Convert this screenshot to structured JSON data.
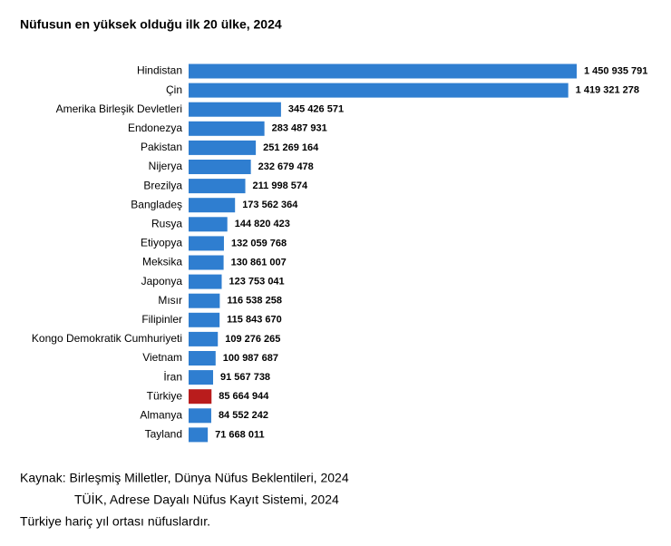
{
  "chart_data": {
    "type": "hbar",
    "title": "Nüfusun en yüksek olduğu ilk 20 ülke, 2024",
    "categories": [
      "Hindistan",
      "Çin",
      "Amerika Birleşik Devletleri",
      "Endonezya",
      "Pakistan",
      "Nijerya",
      "Brezilya",
      "Bangladeş",
      "Rusya",
      "Etiyopya",
      "Meksika",
      "Japonya",
      "Mısır",
      "Filipinler",
      "Kongo Demokratik Cumhuriyeti",
      "Vietnam",
      "İran",
      "Türkiye",
      "Almanya",
      "Tayland"
    ],
    "values": [
      1450935791,
      1419321278,
      345426571,
      283487931,
      251269164,
      232679478,
      211998574,
      173562364,
      144820423,
      132059768,
      130861007,
      123753041,
      116538258,
      115843670,
      109276265,
      100987687,
      91567738,
      85664944,
      84552242,
      71668011
    ],
    "value_labels": [
      "1 450 935 791",
      "1 419 321 278",
      "345 426 571",
      "283 487 931",
      "251 269 164",
      "232 679 478",
      "211 998 574",
      "173 562 364",
      "144 820 423",
      "132 059 768",
      "130 861 007",
      "123 753 041",
      "116 538 258",
      "115 843 670",
      "109 276 265",
      "100 987 687",
      "91 567 738",
      "85 664 944",
      "84 552 242",
      "71 668 011"
    ],
    "colors": [
      "#2f7ed0",
      "#2f7ed0",
      "#2f7ed0",
      "#2f7ed0",
      "#2f7ed0",
      "#2f7ed0",
      "#2f7ed0",
      "#2f7ed0",
      "#2f7ed0",
      "#2f7ed0",
      "#2f7ed0",
      "#2f7ed0",
      "#2f7ed0",
      "#2f7ed0",
      "#2f7ed0",
      "#2f7ed0",
      "#2f7ed0",
      "#b91c1c",
      "#2f7ed0",
      "#2f7ed0"
    ],
    "notes": [
      "Kaynak: Birleşmiş Milletler, Dünya Nüfus Beklentileri, 2024",
      "TÜİK, Adrese Dayalı Nüfus Kayıt Sistemi, 2024",
      "Türkiye hariç yıl ortası nüfuslardır."
    ]
  }
}
